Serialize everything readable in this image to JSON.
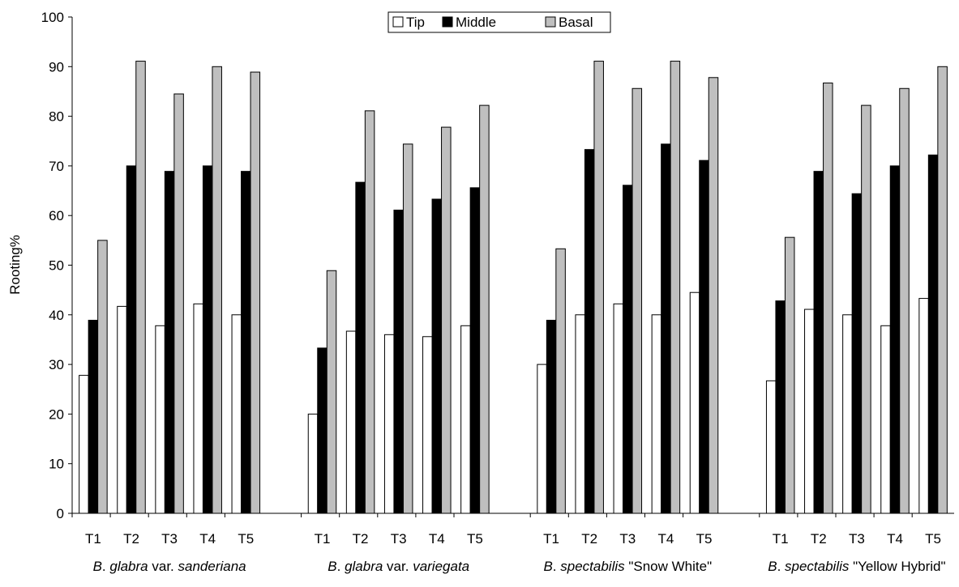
{
  "chart_data": {
    "type": "bar",
    "title": "",
    "xlabel": "",
    "ylabel": "Rooting%",
    "ylim": [
      0,
      100
    ],
    "yticks": [
      0,
      10,
      20,
      30,
      40,
      50,
      60,
      70,
      80,
      90,
      100
    ],
    "grid": false,
    "legend_position": "top-center",
    "legend": [
      "Tip",
      "Middle",
      "Basal"
    ],
    "series_colors": [
      "#ffffff",
      "#000000",
      "#bfbfbf"
    ],
    "treatments": [
      "T1",
      "T2",
      "T3",
      "T4",
      "T5"
    ],
    "groups": [
      {
        "label_parts": [
          {
            "text": "B",
            "italic": true
          },
          {
            "text": ". ",
            "italic": false
          },
          {
            "text": "glabra",
            "italic": true
          },
          {
            "text": " var. ",
            "italic": false
          },
          {
            "text": "sanderiana",
            "italic": true
          }
        ],
        "series": [
          {
            "name": "Tip",
            "values": [
              27.8,
              41.7,
              37.8,
              42.2,
              40.0
            ]
          },
          {
            "name": "Middle",
            "values": [
              38.9,
              70.0,
              68.9,
              70.0,
              68.9
            ]
          },
          {
            "name": "Basal",
            "values": [
              55.0,
              91.1,
              84.5,
              90.0,
              88.9
            ]
          }
        ]
      },
      {
        "label_parts": [
          {
            "text": "B",
            "italic": true
          },
          {
            "text": ". ",
            "italic": false
          },
          {
            "text": "glabra",
            "italic": true
          },
          {
            "text": " var. ",
            "italic": false
          },
          {
            "text": "variegata",
            "italic": true
          }
        ],
        "series": [
          {
            "name": "Tip",
            "values": [
              20.0,
              36.7,
              36.0,
              35.6,
              37.8
            ]
          },
          {
            "name": "Middle",
            "values": [
              33.3,
              66.7,
              61.1,
              63.3,
              65.6
            ]
          },
          {
            "name": "Basal",
            "values": [
              48.9,
              81.1,
              74.4,
              77.8,
              82.2
            ]
          }
        ]
      },
      {
        "label_parts": [
          {
            "text": "B",
            "italic": true
          },
          {
            "text": ". ",
            "italic": false
          },
          {
            "text": "spectabilis",
            "italic": true
          },
          {
            "text": " \"Snow White\"",
            "italic": false
          }
        ],
        "series": [
          {
            "name": "Tip",
            "values": [
              30.0,
              40.0,
              42.2,
              40.0,
              44.5
            ]
          },
          {
            "name": "Middle",
            "values": [
              38.9,
              73.3,
              66.1,
              74.4,
              71.1
            ]
          },
          {
            "name": "Basal",
            "values": [
              53.3,
              91.1,
              85.6,
              91.1,
              87.8
            ]
          }
        ]
      },
      {
        "label_parts": [
          {
            "text": "B",
            "italic": true
          },
          {
            "text": ". ",
            "italic": false
          },
          {
            "text": "spectabilis",
            "italic": true
          },
          {
            "text": " \"Yellow Hybrid\"",
            "italic": false
          }
        ],
        "series": [
          {
            "name": "Tip",
            "values": [
              26.7,
              41.1,
              40.0,
              37.8,
              43.3
            ]
          },
          {
            "name": "Middle",
            "values": [
              42.8,
              68.9,
              64.4,
              70.0,
              72.2
            ]
          },
          {
            "name": "Basal",
            "values": [
              55.6,
              86.7,
              82.2,
              85.6,
              90.0
            ]
          }
        ]
      }
    ]
  }
}
